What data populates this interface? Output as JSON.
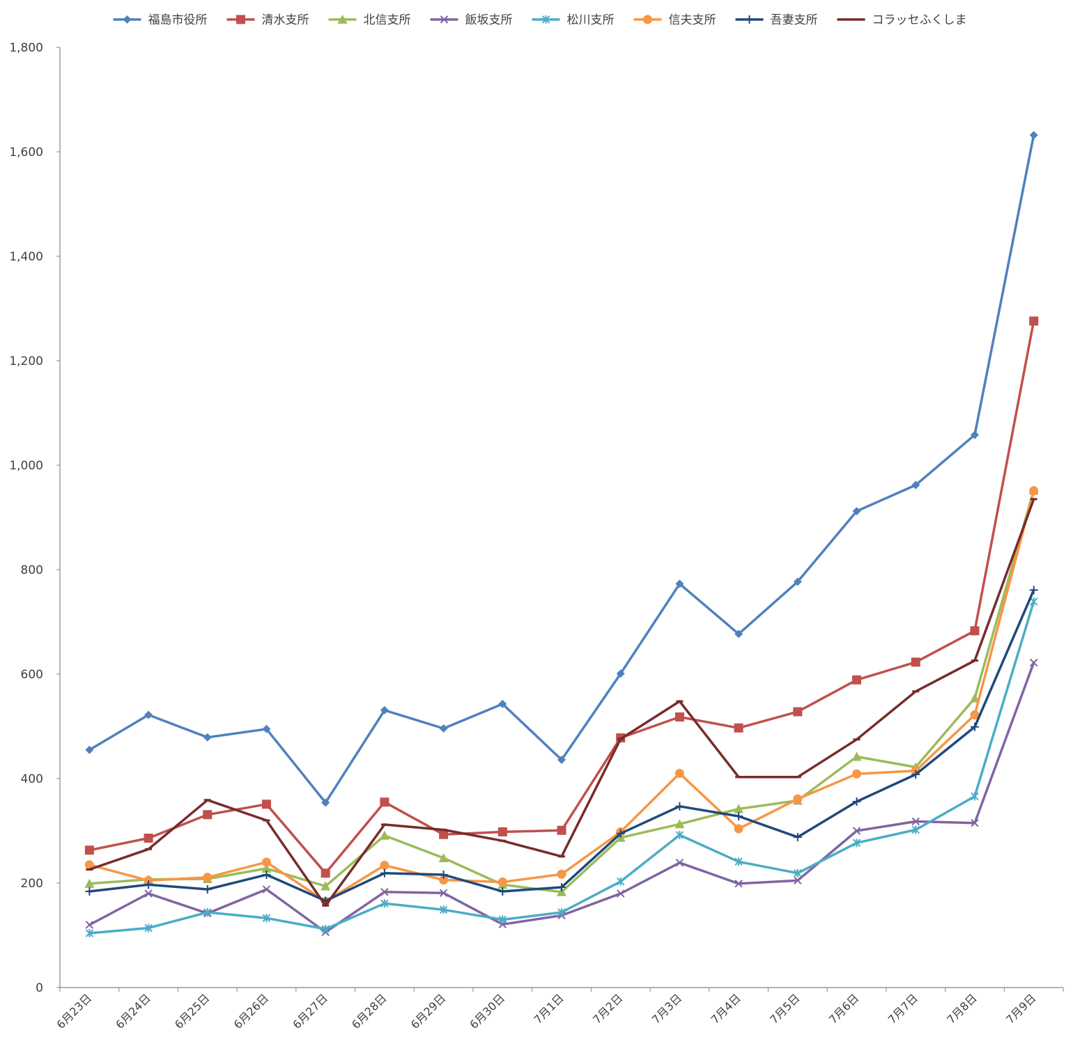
{
  "chart_data": {
    "type": "line",
    "title": "",
    "xlabel": "",
    "ylabel": "",
    "ylim": [
      0,
      1800
    ],
    "yticks": [
      0,
      200,
      400,
      600,
      800,
      1000,
      1200,
      1400,
      1600,
      1800
    ],
    "ytick_labels": [
      "0",
      "200",
      "400",
      "600",
      "800",
      "1,000",
      "1,200",
      "1,400",
      "1,600",
      "1,800"
    ],
    "grid": false,
    "legend_position": "top",
    "categories": [
      "6月23日",
      "6月24日",
      "6月25日",
      "6月26日",
      "6月27日",
      "6月28日",
      "6月29日",
      "6月30日",
      "7月1日",
      "7月2日",
      "7月3日",
      "7月4日",
      "7月5日",
      "7月6日",
      "7月7日",
      "7月8日",
      "7月9日"
    ],
    "series": [
      {
        "name": "福島市役所",
        "color": "#4F81BD",
        "marker": "diamond",
        "values": [
          455,
          522,
          479,
          495,
          354,
          531,
          496,
          543,
          436,
          601,
          773,
          677,
          777,
          912,
          962,
          1058,
          1632
        ]
      },
      {
        "name": "清水支所",
        "color": "#C0504D",
        "marker": "square",
        "values": [
          263,
          286,
          331,
          351,
          219,
          355,
          293,
          298,
          301,
          478,
          518,
          497,
          528,
          589,
          623,
          683,
          1276
        ]
      },
      {
        "name": "北信支所",
        "color": "#9BBB59",
        "marker": "triangle",
        "values": [
          199,
          207,
          208,
          228,
          194,
          291,
          248,
          197,
          183,
          287,
          313,
          342,
          358,
          442,
          422,
          554,
          952
        ]
      },
      {
        "name": "飯坂支所",
        "color": "#8064A2",
        "marker": "x",
        "values": [
          120,
          180,
          142,
          188,
          106,
          183,
          181,
          121,
          138,
          180,
          239,
          199,
          205,
          300,
          318,
          315,
          622
        ]
      },
      {
        "name": "松川支所",
        "color": "#4BACC6",
        "marker": "asterisk",
        "values": [
          104,
          114,
          144,
          133,
          112,
          161,
          149,
          130,
          144,
          203,
          292,
          241,
          219,
          277,
          302,
          366,
          739
        ]
      },
      {
        "name": "信夫支所",
        "color": "#F79646",
        "marker": "circle",
        "values": [
          235,
          205,
          211,
          240,
          165,
          234,
          206,
          202,
          217,
          298,
          410,
          304,
          361,
          409,
          415,
          522,
          951
        ]
      },
      {
        "name": "吾妻支所",
        "color": "#1F497D",
        "marker": "plus",
        "values": [
          184,
          197,
          188,
          216,
          166,
          219,
          216,
          184,
          192,
          295,
          347,
          328,
          288,
          356,
          408,
          499,
          761
        ]
      },
      {
        "name": "コラッセふくしま",
        "color": "#772C2A",
        "marker": "dash",
        "values": [
          226,
          265,
          359,
          320,
          157,
          312,
          302,
          281,
          251,
          476,
          548,
          403,
          403,
          475,
          567,
          626,
          935
        ]
      }
    ]
  }
}
